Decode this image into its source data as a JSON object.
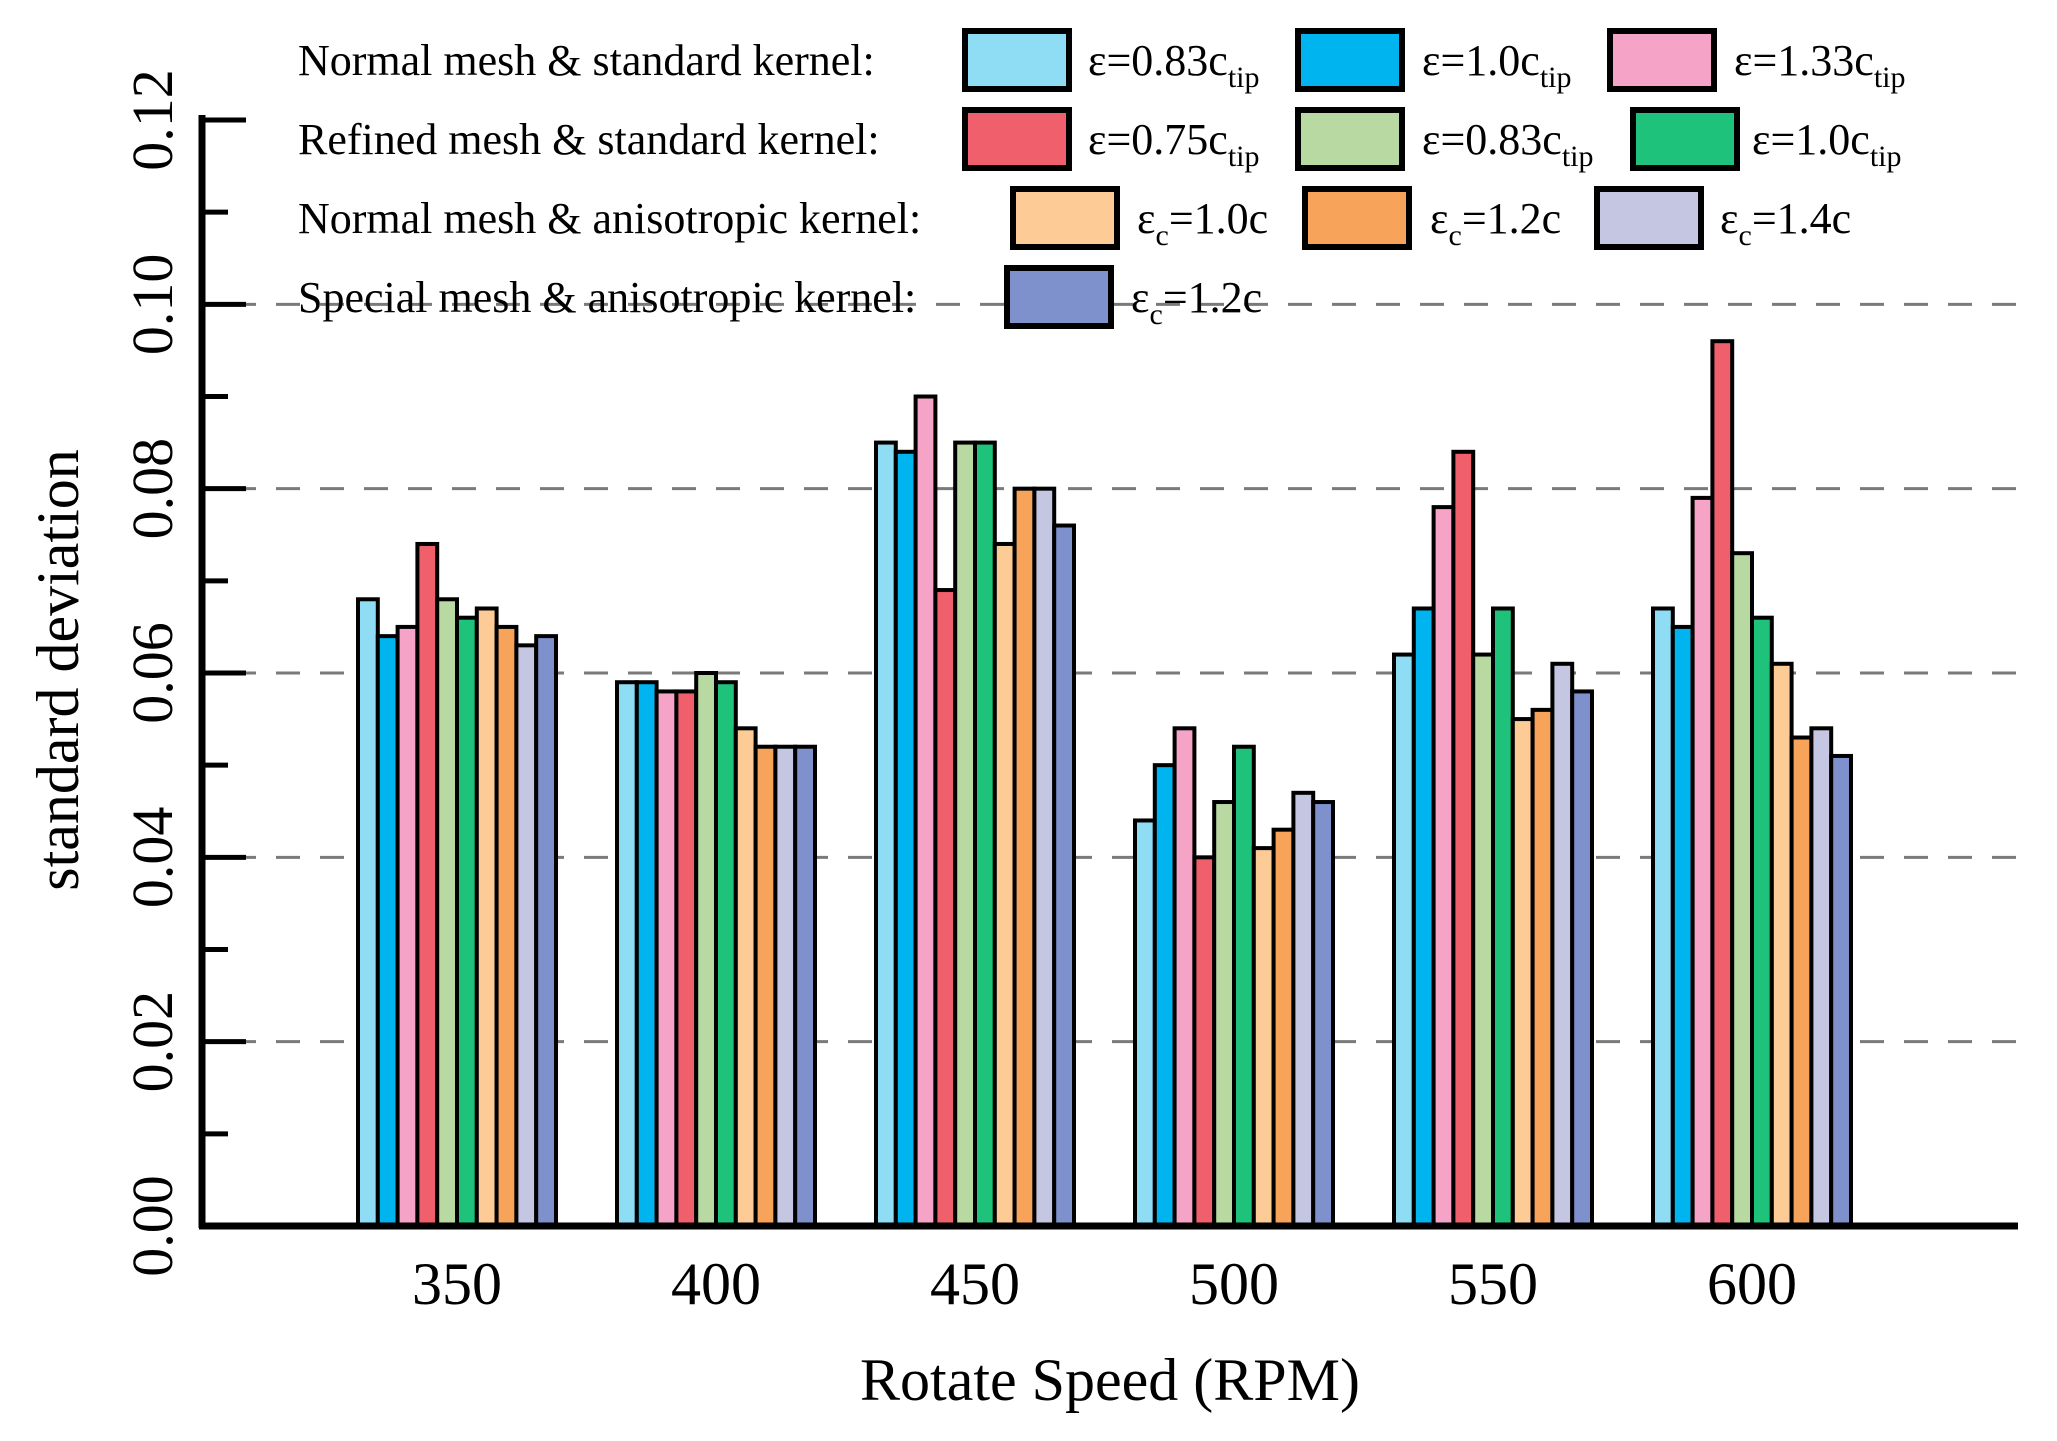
{
  "chart_data": {
    "type": "bar",
    "xlabel": "Rotate Speed (RPM)",
    "ylabel": "standard deviation",
    "ylim": [
      0,
      0.12
    ],
    "yticks": [
      "0.00",
      "0.02",
      "0.04",
      "0.06",
      "0.08",
      "0.10",
      "0.12"
    ],
    "grid": "horizontal dashed at 0.02, 0.04, 0.06, 0.08, 0.10",
    "legend_position": "top",
    "categories": [
      "350",
      "400",
      "450",
      "500",
      "550",
      "600"
    ],
    "series": [
      {
        "name": "Normal mesh & standard kernel: ε=0.83ctip",
        "color": "#8fdcf5",
        "values": [
          0.068,
          0.059,
          0.085,
          0.044,
          0.062,
          0.067
        ]
      },
      {
        "name": "Normal mesh & standard kernel: ε=1.0ctip",
        "color": "#00b4ef",
        "values": [
          0.064,
          0.059,
          0.084,
          0.05,
          0.067,
          0.065
        ]
      },
      {
        "name": "Normal mesh & standard kernel: ε=1.33ctip",
        "color": "#f5a3c6",
        "values": [
          0.065,
          0.058,
          0.09,
          0.054,
          0.078,
          0.079
        ]
      },
      {
        "name": "Refined mesh & standard kernel: ε=0.75ctip",
        "color": "#f0606c",
        "values": [
          0.074,
          0.058,
          0.069,
          0.04,
          0.084,
          0.096
        ]
      },
      {
        "name": "Refined mesh & standard kernel: ε=0.83ctip",
        "color": "#b9d9a3",
        "values": [
          0.068,
          0.06,
          0.085,
          0.046,
          0.062,
          0.073
        ]
      },
      {
        "name": "Refined mesh & standard kernel: ε=1.0ctip",
        "color": "#1ec27a",
        "values": [
          0.066,
          0.059,
          0.085,
          0.052,
          0.067,
          0.066
        ]
      },
      {
        "name": "Normal mesh & anisotropic kernel: εc=1.0c",
        "color": "#fdcb96",
        "values": [
          0.067,
          0.054,
          0.074,
          0.041,
          0.055,
          0.061
        ]
      },
      {
        "name": "Normal mesh & anisotropic kernel: εc=1.2c",
        "color": "#f8a35a",
        "values": [
          0.065,
          0.052,
          0.08,
          0.043,
          0.056,
          0.053
        ]
      },
      {
        "name": "Normal mesh & anisotropic kernel: εc=1.4c",
        "color": "#c5c7e2",
        "values": [
          0.063,
          0.052,
          0.08,
          0.047,
          0.061,
          0.054
        ]
      },
      {
        "name": "Special mesh & anisotropic kernel: εc=1.2c",
        "color": "#7f91cd",
        "values": [
          0.064,
          0.052,
          0.076,
          0.046,
          0.058,
          0.051
        ]
      }
    ],
    "legend": {
      "rows": [
        {
          "label": "Normal mesh & standard kernel:",
          "items": [
            {
              "color": "#8fdcf5",
              "main": "ε=0.83c",
              "sub": "tip"
            },
            {
              "color": "#00b4ef",
              "main": "ε=1.0c",
              "sub": "tip"
            },
            {
              "color": "#f5a3c6",
              "main": "ε=1.33c",
              "sub": "tip"
            }
          ]
        },
        {
          "label": "Refined mesh & standard kernel:",
          "items": [
            {
              "color": "#f0606c",
              "main": "ε=0.75c",
              "sub": "tip"
            },
            {
              "color": "#b9d9a3",
              "main": "ε=0.83c",
              "sub": "tip"
            },
            {
              "color": "#1ec27a",
              "main": "ε=1.0c",
              "sub": "tip"
            }
          ]
        },
        {
          "label": "Normal mesh & anisotropic kernel:",
          "items": [
            {
              "color": "#fdcb96",
              "pre": "ε",
              "sub": "c",
              "post": "=1.0c"
            },
            {
              "color": "#f8a35a",
              "pre": "ε",
              "sub": "c",
              "post": "=1.2c"
            },
            {
              "color": "#c5c7e2",
              "pre": "ε",
              "sub": "c",
              "post": "=1.4c"
            }
          ]
        },
        {
          "label": "Special mesh & anisotropic kernel:",
          "items": [
            {
              "color": "#7f91cd",
              "pre": "ε",
              "sub": "c",
              "post": "=1.2c"
            }
          ]
        }
      ]
    }
  }
}
